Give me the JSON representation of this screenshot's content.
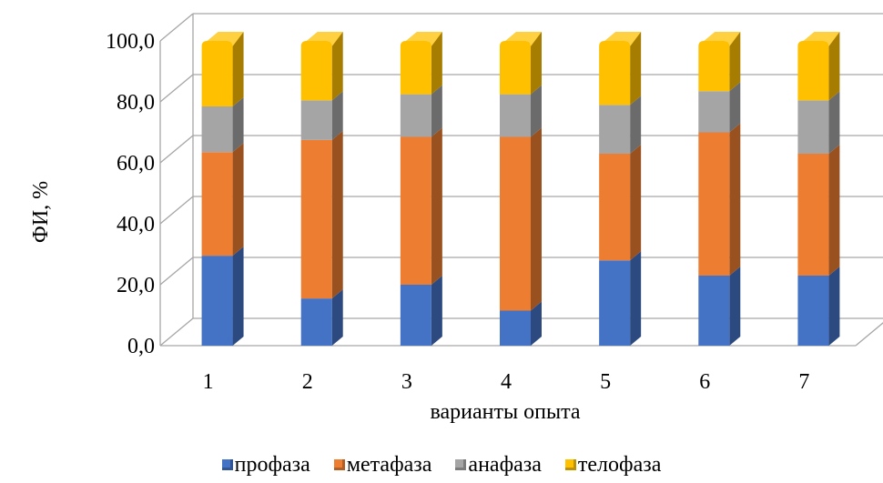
{
  "chart_data": {
    "type": "bar",
    "stacked": true,
    "three_d": true,
    "categories": [
      "1",
      "2",
      "3",
      "4",
      "5",
      "6",
      "7"
    ],
    "series": [
      {
        "name": "профаза",
        "color": "#4472C4",
        "values": [
          29.5,
          15.5,
          20.0,
          11.5,
          28.0,
          23.0,
          23.0
        ]
      },
      {
        "name": "метафаза",
        "color": "#ED7D31",
        "values": [
          34.0,
          52.0,
          48.5,
          57.0,
          35.0,
          47.0,
          40.0
        ]
      },
      {
        "name": "анафаза",
        "color": "#A5A5A5",
        "values": [
          15.0,
          13.0,
          14.0,
          14.0,
          16.0,
          13.5,
          17.5
        ]
      },
      {
        "name": "телофаза",
        "color": "#FFC000",
        "values": [
          21.5,
          19.5,
          17.5,
          17.5,
          21.0,
          16.5,
          19.5
        ]
      }
    ],
    "ylabel": "ФИ, %",
    "xlabel": "варианты опыта",
    "yticks": [
      "0,0",
      "20,0",
      "40,0",
      "60,0",
      "80,0",
      "100,0"
    ],
    "ylim": [
      0,
      100
    ],
    "grid": true,
    "legend_position": "bottom"
  }
}
